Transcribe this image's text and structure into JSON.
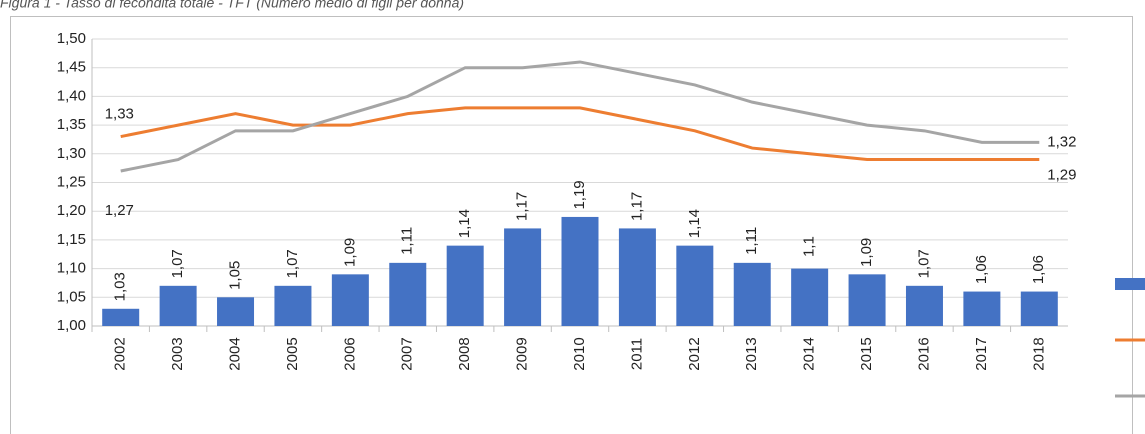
{
  "chart_data": {
    "type": "bar_line",
    "title": "Figura 1 - Tasso di fecondità totale - TFT (Numero medio di figli per donna)",
    "categories": [
      "2002",
      "2003",
      "2004",
      "2005",
      "2006",
      "2007",
      "2008",
      "2009",
      "2010",
      "2011",
      "2012",
      "2013",
      "2014",
      "2015",
      "2016",
      "2017",
      "2018"
    ],
    "series": [
      {
        "type": "bar",
        "color": "#4472c4",
        "values": [
          1.03,
          1.07,
          1.05,
          1.07,
          1.09,
          1.11,
          1.14,
          1.17,
          1.19,
          1.17,
          1.14,
          1.11,
          1.1,
          1.09,
          1.07,
          1.06,
          1.06
        ],
        "value_labels": [
          "1,03",
          "1,07",
          "1,05",
          "1,07",
          "1,09",
          "1,11",
          "1,14",
          "1,17",
          "1,19",
          "1,17",
          "1,14",
          "1,11",
          "1,1",
          "1,09",
          "1,07",
          "1,06",
          "1,06"
        ]
      },
      {
        "type": "line",
        "color": "#ed7d31",
        "values": [
          1.33,
          1.35,
          1.37,
          1.35,
          1.35,
          1.37,
          1.38,
          1.38,
          1.38,
          1.36,
          1.34,
          1.31,
          1.3,
          1.29,
          1.29,
          1.29,
          1.29
        ],
        "value_labels": [
          "1,33",
          null,
          null,
          null,
          null,
          null,
          null,
          null,
          null,
          null,
          null,
          null,
          null,
          null,
          null,
          null,
          "1,29"
        ]
      },
      {
        "type": "line",
        "color": "#a5a5a5",
        "values": [
          1.27,
          1.29,
          1.34,
          1.34,
          1.37,
          1.4,
          1.45,
          1.45,
          1.46,
          1.44,
          1.42,
          1.39,
          1.37,
          1.35,
          1.34,
          1.32,
          1.32
        ],
        "value_labels": [
          "1,27",
          null,
          null,
          null,
          null,
          null,
          null,
          null,
          null,
          null,
          null,
          null,
          null,
          null,
          null,
          null,
          "1,32"
        ]
      }
    ],
    "ylim": [
      1.0,
      1.5
    ],
    "yticks": [
      {
        "value": 1.0,
        "label": "1,00"
      },
      {
        "value": 1.05,
        "label": "1,05"
      },
      {
        "value": 1.1,
        "label": "1,10"
      },
      {
        "value": 1.15,
        "label": "1,15"
      },
      {
        "value": 1.2,
        "label": "1,20"
      },
      {
        "value": 1.25,
        "label": "1,25"
      },
      {
        "value": 1.3,
        "label": "1,30"
      },
      {
        "value": 1.35,
        "label": "1,35"
      },
      {
        "value": 1.4,
        "label": "1,40"
      },
      {
        "value": 1.45,
        "label": "1,45"
      },
      {
        "value": 1.5,
        "label": "1,50"
      }
    ],
    "grid": true
  }
}
